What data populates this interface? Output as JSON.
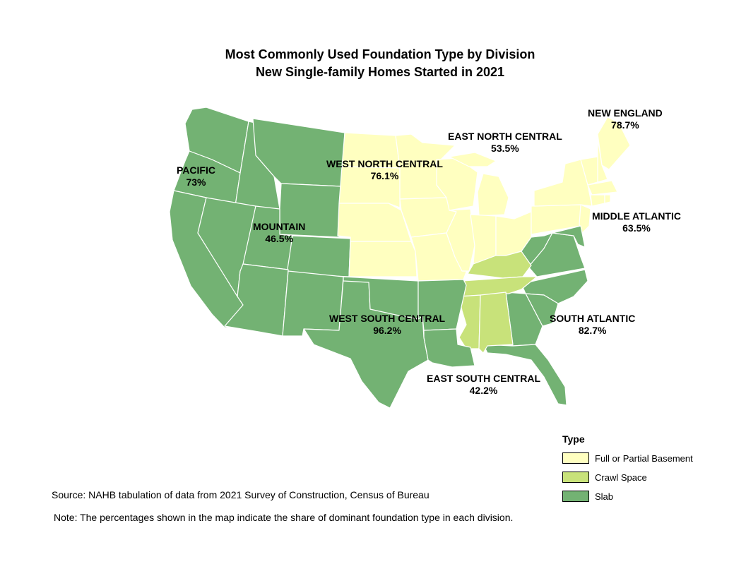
{
  "title_line1": "Most Commonly Used Foundation Type by Division",
  "title_line2": "New Single-family Homes Started in 2021",
  "colors": {
    "basement": "#ffffc0",
    "crawl": "#c8e27a",
    "slab": "#73b273",
    "border": "#ffffff"
  },
  "regions": [
    {
      "name": "PACIFIC",
      "value": "73%",
      "type": "slab"
    },
    {
      "name": "MOUNTAIN",
      "value": "46.5%",
      "type": "slab"
    },
    {
      "name": "WEST NORTH CENTRAL",
      "value": "76.1%",
      "type": "basement"
    },
    {
      "name": "EAST NORTH CENTRAL",
      "value": "53.5%",
      "type": "basement"
    },
    {
      "name": "NEW ENGLAND",
      "value": "78.7%",
      "type": "basement"
    },
    {
      "name": "MIDDLE ATLANTIC",
      "value": "63.5%",
      "type": "basement"
    },
    {
      "name": "SOUTH ATLANTIC",
      "value": "82.7%",
      "type": "slab"
    },
    {
      "name": "WEST SOUTH CENTRAL",
      "value": "96.2%",
      "type": "slab"
    },
    {
      "name": "EAST SOUTH CENTRAL",
      "value": "42.2%",
      "type": "crawl"
    }
  ],
  "legend": {
    "title": "Type",
    "items": [
      {
        "label": "Full or Partial Basement",
        "color": "#ffffc0"
      },
      {
        "label": "Crawl Space",
        "color": "#c8e27a"
      },
      {
        "label": "Slab",
        "color": "#73b273"
      }
    ]
  },
  "source": "Source: NAHB tabulation of data from 2021 Survey of Construction, Census of Bureau",
  "note": "Note: The percentages shown in the map indicate the share of dominant foundation type in each division."
}
